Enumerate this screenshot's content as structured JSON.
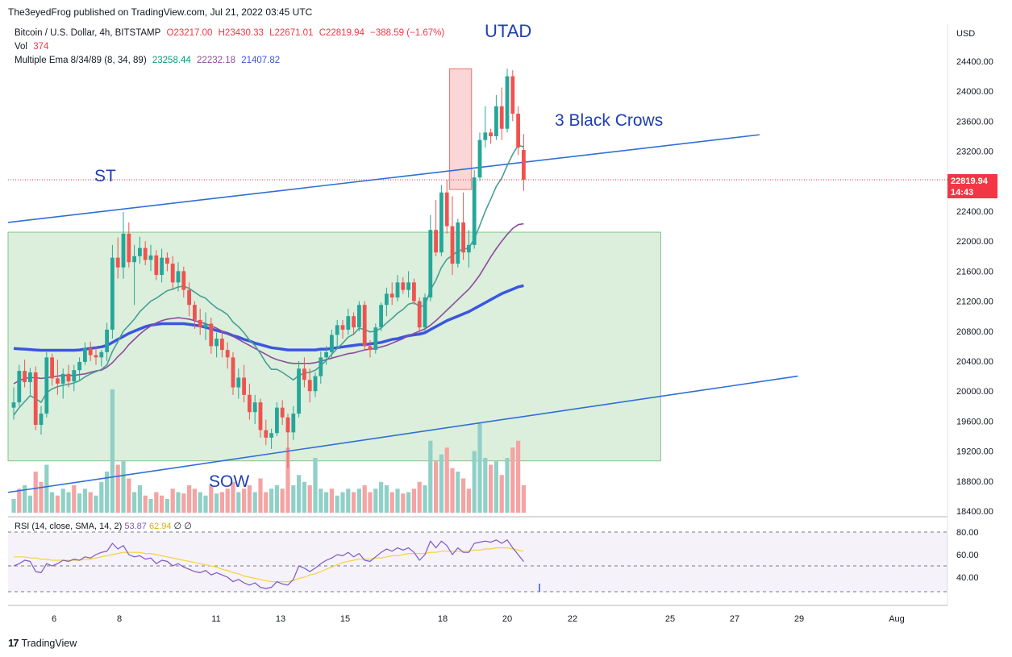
{
  "header": {
    "published": "The3eyedFrog published on TradingView.com, Jul 21, 2022 03:45 UTC"
  },
  "legend": {
    "symbol": "Bitcoin / U.S. Dollar, 4h, BITSTAMP",
    "open": "O23217.00",
    "high": "H23430.33",
    "low": "L22671.01",
    "close": "C22819.94",
    "change": "−388.59 (−1.67%)",
    "vol_label": "Vol",
    "vol_value": "374",
    "ema_label": "Multiple Ema 8/34/89 (8, 34, 89)",
    "ema8": "23258.44",
    "ema34": "22232.18",
    "ema89": "21407.82"
  },
  "rsi_legend": {
    "label": "RSI (14, close, SMA, 14, 2)",
    "rsi": "53.87",
    "sma": "62.94",
    "v1": "∅",
    "v2": "∅"
  },
  "price_tag": {
    "price": "22819.94",
    "time": "14:43"
  },
  "annotations": {
    "utad": "UTAD",
    "crows": "3 Black Crows",
    "st": "ST",
    "sow": "SOW"
  },
  "footer": {
    "brand": "TradingView"
  },
  "colors": {
    "up": "#26a69a",
    "down": "#ef5350",
    "ema8": "#4a9e94",
    "ema34": "#8e4a9e",
    "ema89": "#3a56e0",
    "channel": "#2f6fd6",
    "zone": "#c8e6c9",
    "rsi_line": "#7e57c2",
    "rsi_sma": "#f5d33a"
  },
  "chart_data": {
    "type": "candlestick",
    "title": "Bitcoin / U.S. Dollar, 4h, BITSTAMP",
    "y_axis": {
      "label": "USD",
      "ticks": [
        "24400.00",
        "24000.00",
        "23600.00",
        "23200.00",
        "22400.00",
        "22000.00",
        "21600.00",
        "21200.00",
        "20800.00",
        "20400.00",
        "20000.00",
        "19600.00",
        "19200.00",
        "18800.00",
        "18400.00"
      ]
    },
    "x_axis": {
      "ticks": [
        "6",
        "8",
        "11",
        "13",
        "15",
        "18",
        "20",
        "22",
        "25",
        "27",
        "29",
        "Aug"
      ]
    },
    "rsi_axis": {
      "ticks": [
        "80.00",
        "60.00",
        "40.00"
      ]
    },
    "candles": [
      [
        19780,
        20050,
        19620,
        19850
      ],
      [
        19850,
        20350,
        19800,
        20270
      ],
      [
        20270,
        20420,
        20050,
        20120
      ],
      [
        20120,
        20310,
        19950,
        20250
      ],
      [
        20250,
        20330,
        19480,
        19550
      ],
      [
        19550,
        19800,
        19420,
        19700
      ],
      [
        19700,
        20520,
        19650,
        20450
      ],
      [
        20450,
        20500,
        20070,
        20170
      ],
      [
        20170,
        20420,
        19950,
        20100
      ],
      [
        20100,
        20300,
        19900,
        20230
      ],
      [
        20230,
        20350,
        20050,
        20130
      ],
      [
        20130,
        20350,
        20000,
        20280
      ],
      [
        20280,
        20450,
        20150,
        20390
      ],
      [
        20390,
        20650,
        20350,
        20570
      ],
      [
        20570,
        20660,
        20400,
        20480
      ],
      [
        20480,
        20600,
        20350,
        20450
      ],
      [
        20450,
        20550,
        20330,
        20520
      ],
      [
        20520,
        20910,
        20400,
        20820
      ],
      [
        20820,
        21950,
        20700,
        21780
      ],
      [
        21780,
        22050,
        21500,
        21650
      ],
      [
        21650,
        22390,
        21500,
        22100
      ],
      [
        22100,
        22250,
        21650,
        21720
      ],
      [
        21720,
        21950,
        21150,
        21800
      ],
      [
        21800,
        22060,
        21700,
        21910
      ],
      [
        21910,
        22000,
        21680,
        21750
      ],
      [
        21750,
        21950,
        21600,
        21810
      ],
      [
        21810,
        21880,
        21480,
        21550
      ],
      [
        21550,
        21900,
        21450,
        21780
      ],
      [
        21780,
        21850,
        21600,
        21700
      ],
      [
        21700,
        21800,
        21350,
        21450
      ],
      [
        21450,
        21720,
        21330,
        21600
      ],
      [
        21600,
        21660,
        21250,
        21350
      ],
      [
        21350,
        21450,
        21000,
        21150
      ],
      [
        21150,
        21200,
        20830,
        20950
      ],
      [
        20950,
        21100,
        20750,
        20850
      ],
      [
        20850,
        21050,
        20680,
        20900
      ],
      [
        20900,
        20980,
        20500,
        20600
      ],
      [
        20600,
        20780,
        20450,
        20700
      ],
      [
        20700,
        20800,
        20450,
        20550
      ],
      [
        20550,
        20650,
        20300,
        20450
      ],
      [
        20450,
        20520,
        19950,
        20050
      ],
      [
        20050,
        20300,
        19900,
        20180
      ],
      [
        20180,
        20350,
        19850,
        19950
      ],
      [
        19950,
        20100,
        19620,
        19720
      ],
      [
        19720,
        19950,
        19560,
        19850
      ],
      [
        19850,
        19900,
        19380,
        19480
      ],
      [
        19480,
        19620,
        19280,
        19380
      ],
      [
        19380,
        19500,
        19230,
        19440
      ],
      [
        19440,
        19850,
        19400,
        19780
      ],
      [
        19780,
        19880,
        19550,
        19650
      ],
      [
        19650,
        19700,
        18970,
        19450
      ],
      [
        19450,
        19800,
        19350,
        19700
      ],
      [
        19700,
        20400,
        19650,
        20300
      ],
      [
        20300,
        20450,
        20050,
        20150
      ],
      [
        20150,
        20300,
        19850,
        20000
      ],
      [
        20000,
        20250,
        19920,
        20200
      ],
      [
        20200,
        20530,
        20100,
        20450
      ],
      [
        20450,
        20600,
        20350,
        20520
      ],
      [
        20520,
        20820,
        20450,
        20750
      ],
      [
        20750,
        20950,
        20600,
        20880
      ],
      [
        20880,
        20950,
        20700,
        20820
      ],
      [
        20820,
        21100,
        20750,
        21000
      ],
      [
        21000,
        21050,
        20750,
        20850
      ],
      [
        20850,
        21200,
        20800,
        21150
      ],
      [
        21150,
        21200,
        20550,
        20600
      ],
      [
        20600,
        20680,
        20450,
        20550
      ],
      [
        20550,
        20900,
        20500,
        20850
      ],
      [
        20850,
        21180,
        20800,
        21150
      ],
      [
        21150,
        21380,
        21000,
        21300
      ],
      [
        21300,
        21450,
        21150,
        21250
      ],
      [
        21250,
        21550,
        21200,
        21450
      ],
      [
        21450,
        21520,
        21300,
        21350
      ],
      [
        21350,
        21600,
        21250,
        21450
      ],
      [
        21450,
        21500,
        21150,
        21200
      ],
      [
        21200,
        21250,
        20780,
        20850
      ],
      [
        20850,
        21300,
        20800,
        21250
      ],
      [
        21250,
        22350,
        21200,
        22150
      ],
      [
        22150,
        22550,
        21800,
        21850
      ],
      [
        21850,
        22750,
        21800,
        22650
      ],
      [
        22650,
        22820,
        22100,
        22200
      ],
      [
        22200,
        22600,
        21550,
        21700
      ],
      [
        21700,
        22300,
        21650,
        22250
      ],
      [
        22250,
        22650,
        21750,
        21850
      ],
      [
        21850,
        22150,
        21650,
        21950
      ],
      [
        21950,
        22950,
        21900,
        22850
      ],
      [
        22850,
        23450,
        22800,
        23350
      ],
      [
        23350,
        23800,
        23250,
        23450
      ],
      [
        23450,
        23500,
        23300,
        23400
      ],
      [
        23400,
        23950,
        23350,
        23800
      ],
      [
        23800,
        24050,
        23350,
        23500
      ],
      [
        23500,
        24300,
        23450,
        24200
      ],
      [
        24200,
        24280,
        23600,
        23700
      ],
      [
        23700,
        23800,
        23150,
        23250
      ],
      [
        23217,
        23430,
        22671,
        22820
      ]
    ],
    "volume": [
      [
        20,
        0
      ],
      [
        35,
        1
      ],
      [
        40,
        0
      ],
      [
        25,
        0
      ],
      [
        60,
        1
      ],
      [
        45,
        1
      ],
      [
        70,
        0
      ],
      [
        30,
        0
      ],
      [
        25,
        1
      ],
      [
        35,
        0
      ],
      [
        30,
        0
      ],
      [
        40,
        1
      ],
      [
        28,
        0
      ],
      [
        35,
        0
      ],
      [
        30,
        1
      ],
      [
        25,
        0
      ],
      [
        45,
        0
      ],
      [
        60,
        0
      ],
      [
        180,
        0
      ],
      [
        70,
        1
      ],
      [
        75,
        0
      ],
      [
        50,
        1
      ],
      [
        30,
        0
      ],
      [
        40,
        0
      ],
      [
        25,
        1
      ],
      [
        20,
        0
      ],
      [
        30,
        1
      ],
      [
        25,
        1
      ],
      [
        20,
        0
      ],
      [
        35,
        1
      ],
      [
        30,
        0
      ],
      [
        28,
        1
      ],
      [
        40,
        1
      ],
      [
        35,
        1
      ],
      [
        30,
        0
      ],
      [
        25,
        0
      ],
      [
        40,
        1
      ],
      [
        28,
        0
      ],
      [
        30,
        1
      ],
      [
        35,
        1
      ],
      [
        45,
        1
      ],
      [
        30,
        0
      ],
      [
        35,
        1
      ],
      [
        40,
        1
      ],
      [
        30,
        0
      ],
      [
        50,
        1
      ],
      [
        30,
        1
      ],
      [
        35,
        0
      ],
      [
        40,
        0
      ],
      [
        35,
        1
      ],
      [
        95,
        1
      ],
      [
        40,
        0
      ],
      [
        55,
        0
      ],
      [
        45,
        0
      ],
      [
        40,
        1
      ],
      [
        80,
        0
      ],
      [
        35,
        0
      ],
      [
        30,
        0
      ],
      [
        35,
        1
      ],
      [
        25,
        0
      ],
      [
        30,
        0
      ],
      [
        35,
        0
      ],
      [
        30,
        1
      ],
      [
        35,
        0
      ],
      [
        40,
        1
      ],
      [
        30,
        1
      ],
      [
        35,
        0
      ],
      [
        45,
        0
      ],
      [
        40,
        0
      ],
      [
        30,
        1
      ],
      [
        35,
        0
      ],
      [
        28,
        1
      ],
      [
        30,
        0
      ],
      [
        35,
        1
      ],
      [
        45,
        1
      ],
      [
        40,
        0
      ],
      [
        105,
        0
      ],
      [
        75,
        1
      ],
      [
        85,
        0
      ],
      [
        95,
        1
      ],
      [
        65,
        1
      ],
      [
        60,
        0
      ],
      [
        50,
        1
      ],
      [
        35,
        1
      ],
      [
        90,
        0
      ],
      [
        130,
        0
      ],
      [
        80,
        0
      ],
      [
        70,
        1
      ],
      [
        75,
        0
      ],
      [
        55,
        1
      ],
      [
        80,
        0
      ],
      [
        95,
        1
      ],
      [
        105,
        1
      ],
      [
        40,
        1
      ]
    ],
    "ema8": [
      19680,
      19780,
      19860,
      19940,
      19900,
      19850,
      19980,
      20030,
      20060,
      20080,
      20090,
      20110,
      20140,
      20190,
      20230,
      20260,
      20290,
      20350,
      20530,
      20660,
      20800,
      20880,
      20960,
      21060,
      21130,
      21200,
      21240,
      21290,
      21340,
      21360,
      21390,
      21400,
      21370,
      21320,
      21270,
      21240,
      21170,
      21110,
      21070,
      21020,
      20920,
      20860,
      20780,
      20680,
      20610,
      20500,
      20380,
      20290,
      20290,
      20250,
      20200,
      20150,
      20210,
      20240,
      20250,
      20280,
      20340,
      20410,
      20490,
      20570,
      20640,
      20720,
      20760,
      20840,
      20820,
      20790,
      20800,
      20840,
      20910,
      20970,
      21040,
      21090,
      21160,
      21180,
      21130,
      21140,
      21350,
      21480,
      21650,
      21760,
      21810,
      21870,
      21890,
      21910,
      22030,
      22210,
      22400,
      22560,
      22730,
      22840,
      23010,
      23160,
      23280,
      23258
    ],
    "ema34": [
      20100,
      20140,
      20170,
      20180,
      20180,
      20170,
      20180,
      20190,
      20200,
      20210,
      20210,
      20210,
      20220,
      20230,
      20250,
      20270,
      20280,
      20320,
      20380,
      20460,
      20530,
      20620,
      20690,
      20760,
      20820,
      20870,
      20910,
      20940,
      20960,
      20970,
      20980,
      20970,
      20960,
      20940,
      20920,
      20900,
      20870,
      20840,
      20800,
      20770,
      20730,
      20690,
      20650,
      20610,
      20570,
      20530,
      20490,
      20450,
      20420,
      20400,
      20380,
      20370,
      20370,
      20370,
      20370,
      20380,
      20400,
      20420,
      20440,
      20460,
      20480,
      20500,
      20510,
      20530,
      20550,
      20560,
      20570,
      20590,
      20610,
      20640,
      20670,
      20700,
      20740,
      20770,
      20800,
      20830,
      20880,
      20940,
      21010,
      21080,
      21150,
      21220,
      21290,
      21360,
      21450,
      21550,
      21670,
      21790,
      21900,
      22000,
      22090,
      22170,
      22220,
      22232
    ],
    "ema89": [
      20570,
      20565,
      20560,
      20555,
      20550,
      20545,
      20545,
      20545,
      20545,
      20545,
      20545,
      20545,
      20550,
      20560,
      20570,
      20580,
      20590,
      20610,
      20650,
      20690,
      20730,
      20770,
      20800,
      20830,
      20860,
      20880,
      20890,
      20900,
      20900,
      20900,
      20900,
      20900,
      20890,
      20880,
      20870,
      20850,
      20830,
      20810,
      20790,
      20770,
      20740,
      20720,
      20690,
      20670,
      20640,
      20620,
      20600,
      20580,
      20570,
      20560,
      20550,
      20550,
      20550,
      20550,
      20550,
      20550,
      20560,
      20560,
      20570,
      20580,
      20590,
      20600,
      20610,
      20620,
      20620,
      20630,
      20640,
      20650,
      20670,
      20690,
      20700,
      20720,
      20740,
      20750,
      20760,
      20780,
      20820,
      20860,
      20900,
      20940,
      20970,
      21000,
      21030,
      21060,
      21100,
      21140,
      21180,
      21220,
      21260,
      21300,
      21330,
      21360,
      21390,
      21408
    ],
    "rsi": [
      50,
      52,
      55,
      54,
      45,
      44,
      52,
      50,
      52,
      55,
      54,
      56,
      55,
      58,
      57,
      60,
      62,
      63,
      70,
      65,
      68,
      60,
      58,
      59,
      56,
      57,
      52,
      55,
      54,
      50,
      52,
      49,
      47,
      45,
      44,
      46,
      42,
      44,
      42,
      40,
      36,
      38,
      35,
      33,
      35,
      31,
      30,
      31,
      36,
      34,
      33,
      38,
      50,
      48,
      45,
      48,
      52,
      55,
      57,
      60,
      59,
      62,
      58,
      61,
      55,
      54,
      58,
      62,
      65,
      63,
      66,
      64,
      66,
      62,
      55,
      60,
      72,
      66,
      72,
      68,
      60,
      66,
      62,
      62,
      70,
      71,
      72,
      71,
      73,
      70,
      73,
      66,
      60,
      53.87
    ],
    "rsi_sma": [
      58,
      58,
      58,
      57,
      57,
      56,
      56,
      55,
      55,
      55,
      55,
      55,
      55,
      56,
      56,
      57,
      58,
      59,
      60,
      61,
      62,
      62,
      62,
      62,
      61,
      61,
      60,
      59,
      58,
      57,
      56,
      55,
      54,
      53,
      52,
      51,
      50,
      49,
      47,
      46,
      44,
      43,
      41,
      40,
      39,
      38,
      37,
      36,
      36,
      36,
      36,
      37,
      39,
      40,
      42,
      43,
      45,
      47,
      49,
      51,
      53,
      54,
      55,
      56,
      56,
      56,
      57,
      57,
      58,
      59,
      59,
      60,
      61,
      61,
      61,
      61,
      62,
      62,
      63,
      63,
      63,
      63,
      63,
      63,
      64,
      64,
      65,
      65,
      66,
      66,
      66,
      65,
      64,
      62.94
    ],
    "channel_upper": {
      "from": [
        0,
        22250
      ],
      "to": [
        136,
        23420
      ]
    },
    "channel_lower": {
      "from": [
        0,
        18650
      ],
      "to": [
        143,
        20200
      ]
    },
    "accumulation_zone": {
      "x_start": 0,
      "x_end": 118,
      "y_low": 19070,
      "y_high": 22120
    },
    "crows_box": {
      "x_start": 79.5,
      "x_end": 83.5,
      "y_low": 22690,
      "y_high": 24300
    }
  }
}
